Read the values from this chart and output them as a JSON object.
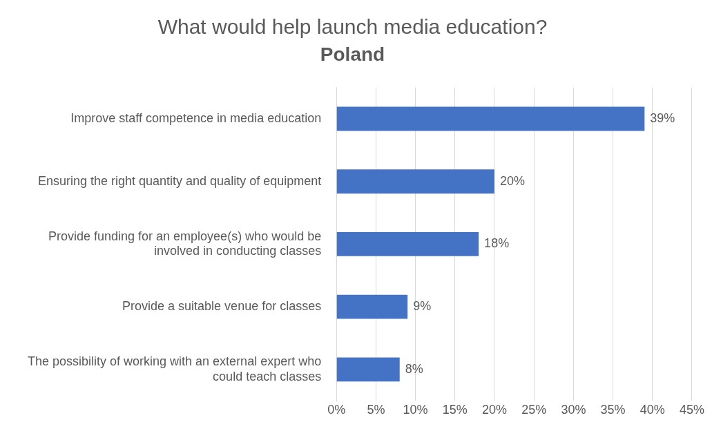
{
  "chart_data": {
    "type": "bar",
    "orientation": "horizontal",
    "title": "What would help launch media education?",
    "subtitle": "Poland",
    "categories": [
      "Improve staff competence in media education",
      "Ensuring the right quantity and quality of equipment",
      "Provide funding for an employee(s) who would be involved in conducting classes",
      "Provide a suitable venue for classes",
      "The possibility of working with an external expert who could teach classes"
    ],
    "values": [
      39,
      20,
      18,
      9,
      8
    ],
    "value_labels": [
      "39%",
      "20%",
      "18%",
      "9%",
      "8%"
    ],
    "color": "#4472c4",
    "xlim": [
      0,
      45
    ],
    "xticks": [
      {
        "value": 0,
        "label": "0%"
      },
      {
        "value": 5,
        "label": "5%"
      },
      {
        "value": 10,
        "label": "10%"
      },
      {
        "value": 15,
        "label": "15%"
      },
      {
        "value": 20,
        "label": "20%"
      },
      {
        "value": 25,
        "label": "25%"
      },
      {
        "value": 30,
        "label": "30%"
      },
      {
        "value": 35,
        "label": "35%"
      },
      {
        "value": 40,
        "label": "40%"
      },
      {
        "value": 45,
        "label": "45%"
      }
    ],
    "grid": "x",
    "legend": false
  }
}
